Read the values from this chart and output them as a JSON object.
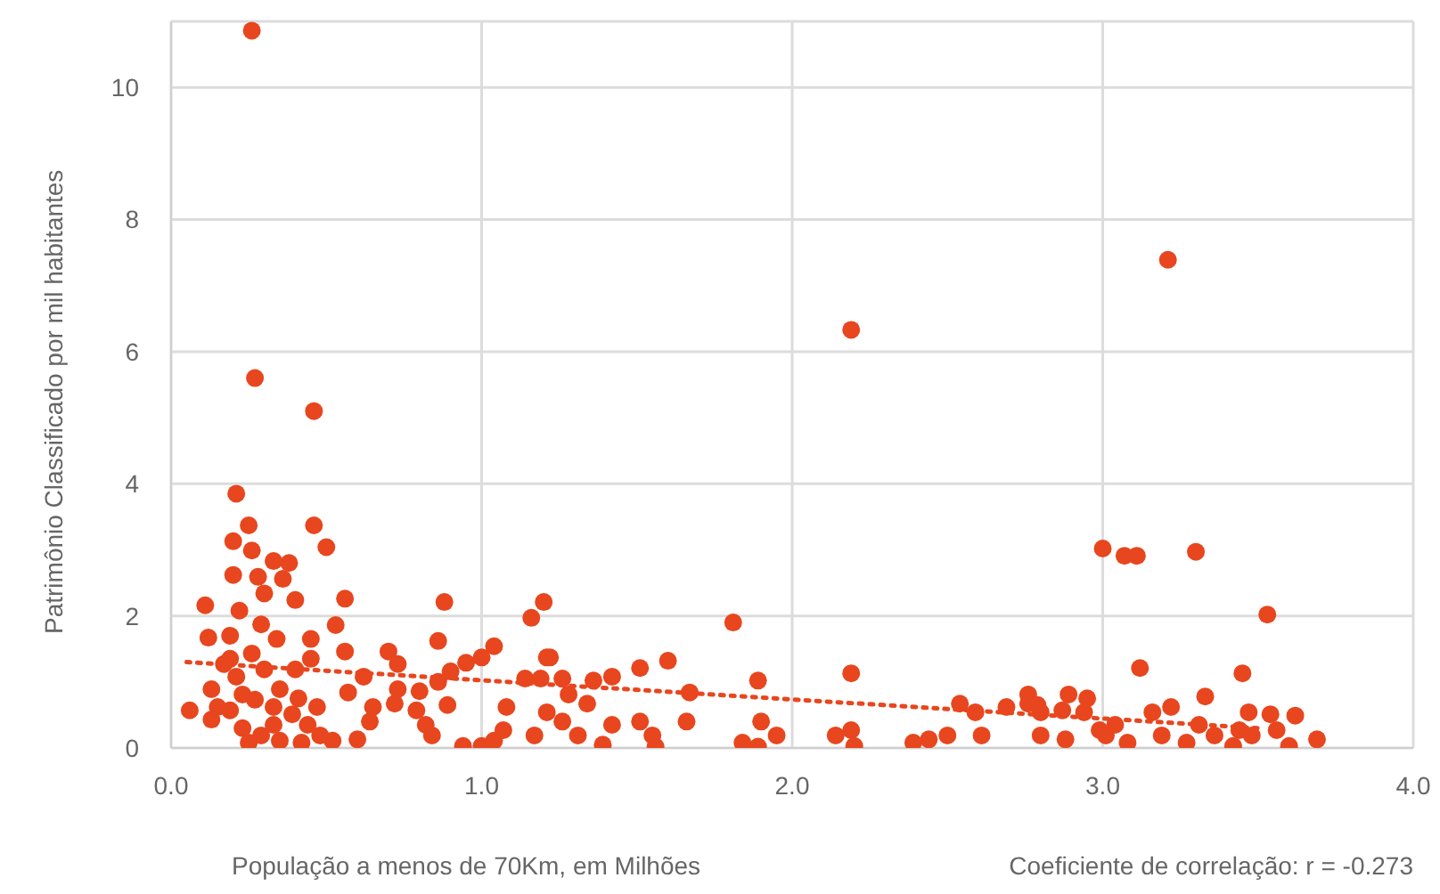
{
  "chart_data": {
    "type": "scatter",
    "xlabel": "População a menos de 70Km, em Milhões",
    "ylabel": "Patrimônio Classificado por mil habitantes",
    "annotations": [
      "Coeficiente de correlação: r = -0.273"
    ],
    "xlim": [
      0,
      4
    ],
    "xticks": [
      {
        "value": 0,
        "label": "0.0"
      },
      {
        "value": 1,
        "label": "1.0"
      },
      {
        "value": 2,
        "label": "2.0"
      },
      {
        "value": 3,
        "label": "3.0"
      },
      {
        "value": 4,
        "label": "4.0"
      }
    ],
    "ylim": [
      0,
      11
    ],
    "yticks": [
      0,
      2,
      4,
      6,
      8,
      10
    ],
    "grid": true,
    "series": [
      {
        "marker": "circle",
        "color": "#e8461e",
        "x": [
          0.26,
          0.27,
          0.46,
          2.19,
          3.21,
          1.81,
          3.0,
          3.07,
          3.11,
          3.3,
          3.53,
          3.12,
          3.45,
          3.33,
          2.19,
          0.21,
          0.25,
          0.2,
          0.26,
          0.46,
          0.5,
          0.33,
          0.38,
          0.2,
          0.28,
          0.36,
          0.3,
          0.4,
          0.56,
          0.88,
          0.11,
          0.22,
          0.29,
          0.53,
          0.12,
          0.19,
          0.34,
          0.45,
          0.86,
          0.56,
          0.26,
          0.7,
          0.45,
          0.17,
          0.4,
          0.73,
          0.62,
          0.21,
          0.3,
          0.9,
          0.13,
          0.35,
          0.73,
          0.8,
          0.86,
          0.57,
          0.65,
          0.06,
          0.47,
          0.72,
          0.79,
          0.89,
          0.13,
          0.19,
          0.27,
          0.41,
          0.64,
          0.82,
          0.23,
          0.33,
          0.39,
          0.44,
          0.25,
          0.29,
          0.35,
          0.42,
          0.52,
          0.6,
          0.84,
          0.48,
          0.94,
          1.0,
          0.19,
          1.04,
          1.0,
          0.95,
          1.16,
          1.2,
          1.21,
          1.08,
          1.14,
          1.07,
          1.17,
          1.04,
          0.33,
          0.15,
          0.23,
          1.22,
          1.51,
          1.6,
          1.26,
          1.36,
          1.42,
          1.19,
          1.67,
          1.89,
          1.28,
          1.34,
          1.21,
          1.26,
          1.31,
          1.42,
          1.51,
          1.55,
          1.66,
          1.56,
          1.39,
          1.9,
          1.95,
          1.84,
          1.89,
          2.14,
          2.19,
          2.2,
          2.39,
          2.44,
          2.5,
          2.54,
          2.59,
          2.89,
          2.76,
          2.8,
          2.61,
          2.69,
          2.76,
          2.79,
          2.87,
          2.95,
          2.94,
          2.8,
          2.88,
          2.99,
          3.04,
          3.08,
          3.16,
          3.22,
          3.19,
          3.27,
          3.31,
          3.36,
          3.42,
          3.47,
          3.54,
          3.62,
          3.6,
          3.69,
          3.48,
          3.01,
          3.44,
          3.56
        ],
        "values": [
          10.86,
          5.6,
          5.1,
          6.33,
          7.39,
          1.9,
          3.02,
          2.91,
          2.91,
          2.97,
          2.02,
          1.21,
          1.13,
          0.78,
          1.13,
          3.85,
          3.37,
          3.13,
          2.99,
          3.37,
          3.04,
          2.83,
          2.8,
          2.62,
          2.59,
          2.56,
          2.34,
          2.24,
          2.26,
          2.21,
          2.16,
          2.08,
          1.87,
          1.86,
          1.67,
          1.7,
          1.65,
          1.65,
          1.62,
          1.46,
          1.43,
          1.46,
          1.35,
          1.27,
          1.19,
          1.27,
          1.08,
          1.08,
          1.19,
          1.16,
          0.89,
          0.89,
          0.89,
          0.86,
          1.0,
          0.84,
          0.62,
          0.57,
          0.62,
          0.67,
          0.57,
          0.65,
          0.43,
          0.57,
          0.73,
          0.75,
          0.4,
          0.35,
          0.3,
          0.35,
          0.51,
          0.35,
          0.08,
          0.19,
          0.11,
          0.08,
          0.11,
          0.13,
          0.19,
          0.19,
          0.03,
          0.03,
          1.35,
          1.54,
          1.37,
          1.29,
          1.97,
          2.21,
          1.37,
          0.62,
          1.05,
          0.27,
          0.19,
          0.11,
          0.62,
          0.62,
          0.81,
          1.37,
          1.21,
          1.32,
          1.05,
          1.02,
          1.08,
          1.05,
          0.84,
          1.02,
          0.81,
          0.67,
          0.54,
          0.4,
          0.19,
          0.35,
          0.4,
          0.19,
          0.4,
          0.02,
          0.05,
          0.4,
          0.19,
          0.08,
          0.02,
          0.19,
          0.27,
          0.03,
          0.08,
          0.13,
          0.19,
          0.67,
          0.54,
          0.81,
          0.67,
          0.54,
          0.19,
          0.62,
          0.81,
          0.65,
          0.57,
          0.75,
          0.54,
          0.19,
          0.13,
          0.27,
          0.35,
          0.08,
          0.54,
          0.62,
          0.19,
          0.08,
          0.35,
          0.19,
          0.03,
          0.54,
          0.51,
          0.49,
          0.03,
          0.13,
          0.19,
          0.19,
          0.27,
          0.27
        ]
      },
      {
        "type": "line",
        "marker": "none",
        "color": "#e8461e",
        "line_style": "dotted",
        "x": [
          0.05,
          3.5
        ],
        "values": [
          1.3,
          0.3
        ]
      }
    ]
  }
}
